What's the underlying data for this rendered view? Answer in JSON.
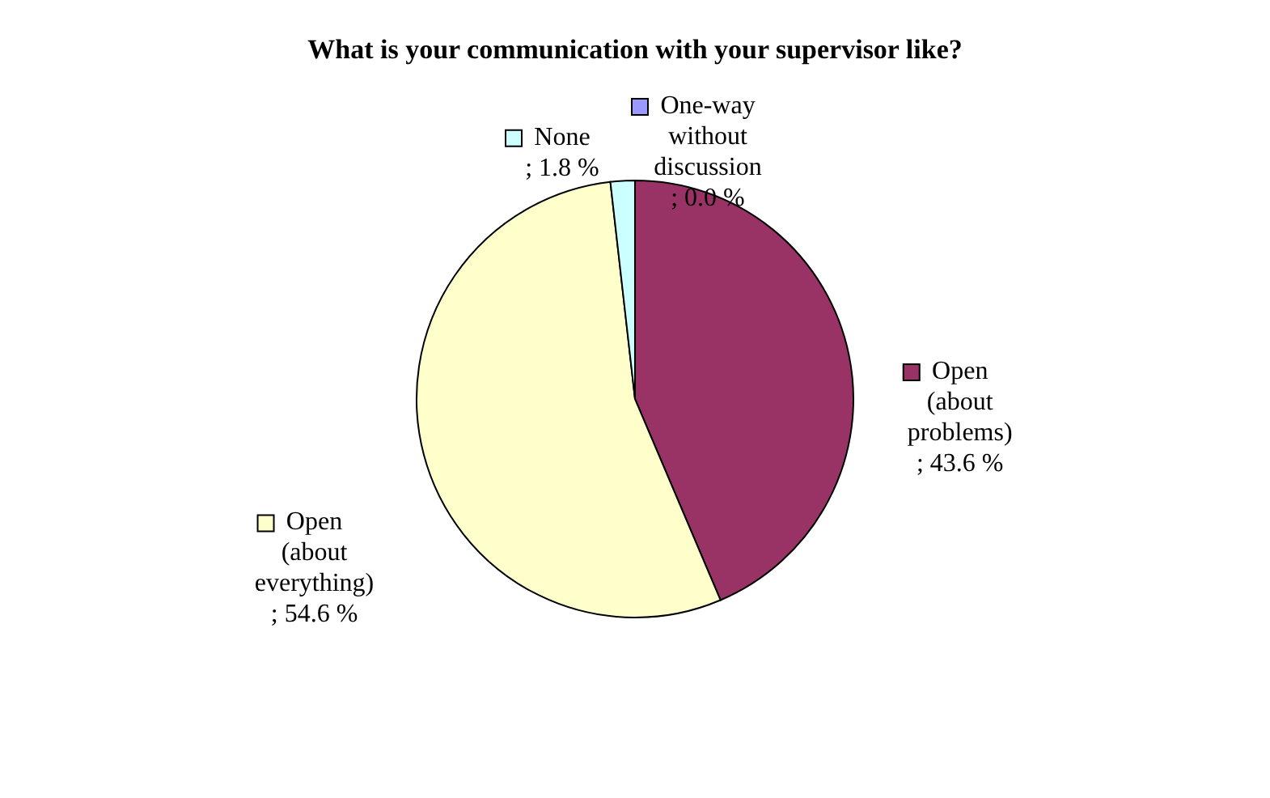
{
  "chart_data": {
    "type": "pie",
    "title": "What is your communication with your supervisor like?",
    "categories": [
      "One-way without discussion",
      "Open (about problems)",
      "Open (about everything)",
      "None"
    ],
    "values": [
      0.0,
      43.6,
      54.6,
      1.8
    ],
    "colors": [
      "#9999ff",
      "#993366",
      "#ffffcc",
      "#ccffff"
    ],
    "value_labels": [
      "; 0.0 %",
      "; 43.6 %",
      "; 54.6 %",
      "; 1.8 %"
    ],
    "legend": "top left"
  }
}
